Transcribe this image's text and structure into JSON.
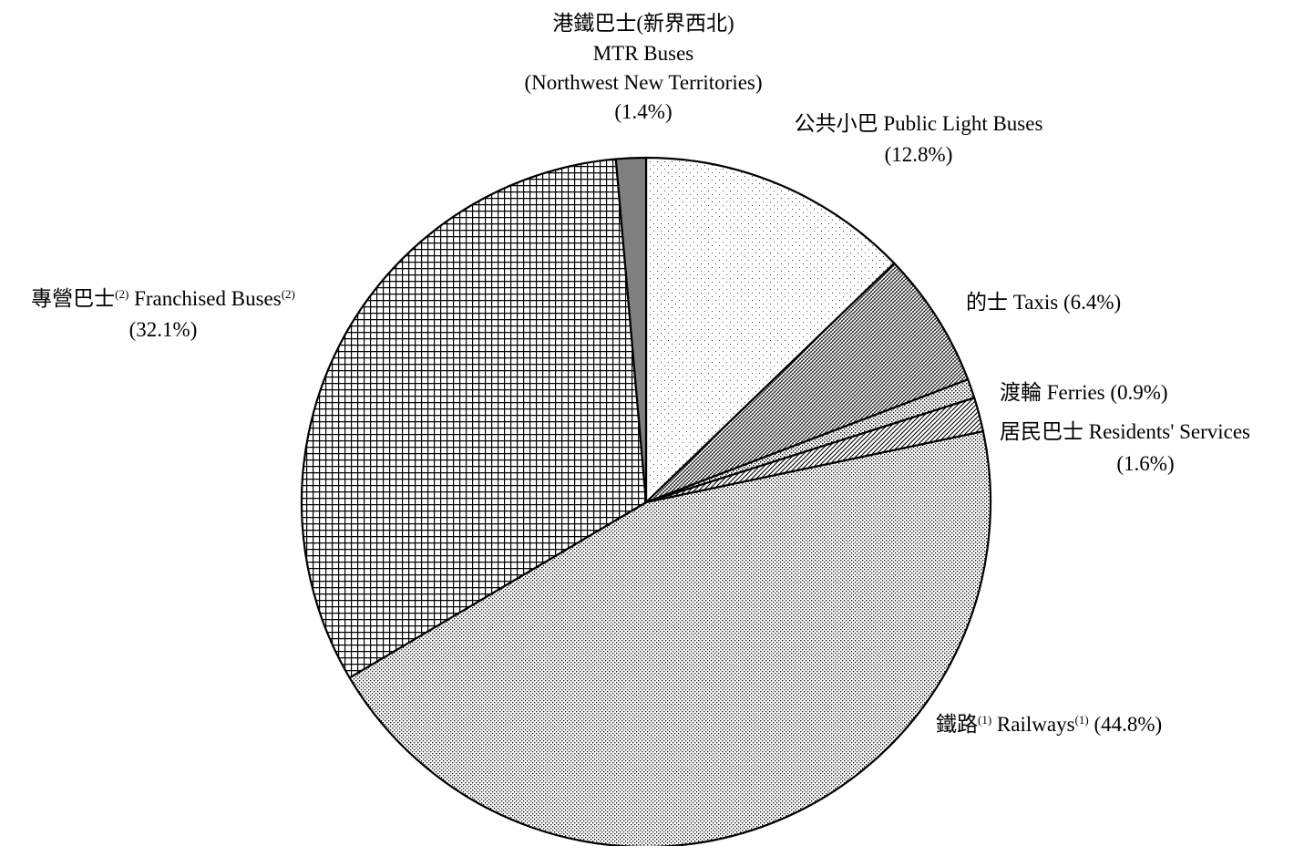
{
  "chart_data": {
    "type": "pie",
    "title": "",
    "slices": [
      {
        "label": "公共小巴 Public Light Buses",
        "value": 12.8,
        "pct_text": "(12.8%)",
        "pattern": "sparse-dots"
      },
      {
        "label": "的士 Taxis",
        "value": 6.4,
        "pct_text": "(6.4%)",
        "pattern": "fine-diag-cross"
      },
      {
        "label": "渡輪 Ferries",
        "value": 0.9,
        "pct_text": "(0.9%)",
        "pattern": "small-dots"
      },
      {
        "label": "居民巴士 Residents' Services",
        "value": 1.6,
        "pct_text": "(1.6%)",
        "pattern": "diagonal-lines"
      },
      {
        "label": "鐵路(1) Railways(1)",
        "value": 44.8,
        "pct_text": "(44.8%)",
        "pattern": "dense-dots"
      },
      {
        "label": "專營巴士(2) Franchised Buses(2)",
        "value": 32.1,
        "pct_text": "(32.1%)",
        "pattern": "grid"
      },
      {
        "label": "港鐵巴士(新界西北) MTR Buses (Northwest New Territories)",
        "value": 1.4,
        "pct_text": "(1.4%)",
        "pattern": "solid-gray"
      }
    ],
    "start_angle_deg": 0,
    "direction": "clockwise",
    "colors": {
      "stroke": "#000000",
      "solid": "#808080",
      "background": "#ffffff"
    }
  },
  "labels": {
    "mtr_buses": {
      "zh": "港鐵巴士(新界西北)",
      "en1": "MTR Buses",
      "en2": "(Northwest New Territories)",
      "pct": "(1.4%)"
    },
    "plb": {
      "text": "公共小巴 Public Light Buses",
      "pct": "(12.8%)"
    },
    "taxis": {
      "text": "的士 Taxis (6.4%)"
    },
    "ferries": {
      "text": "渡輪 Ferries (0.9%)"
    },
    "residents": {
      "text": "居民巴士 Residents' Services",
      "pct": "(1.6%)"
    },
    "railways": {
      "zh": "鐵路",
      "sup1": "(1)",
      "en": " Railways",
      "sup2": "(1)",
      "pct": " (44.8%)"
    },
    "franchised": {
      "zh": "專營巴士",
      "sup1": "(2)",
      "en": " Franchised Buses",
      "sup2": "(2)",
      "pct": "(32.1%)"
    }
  }
}
